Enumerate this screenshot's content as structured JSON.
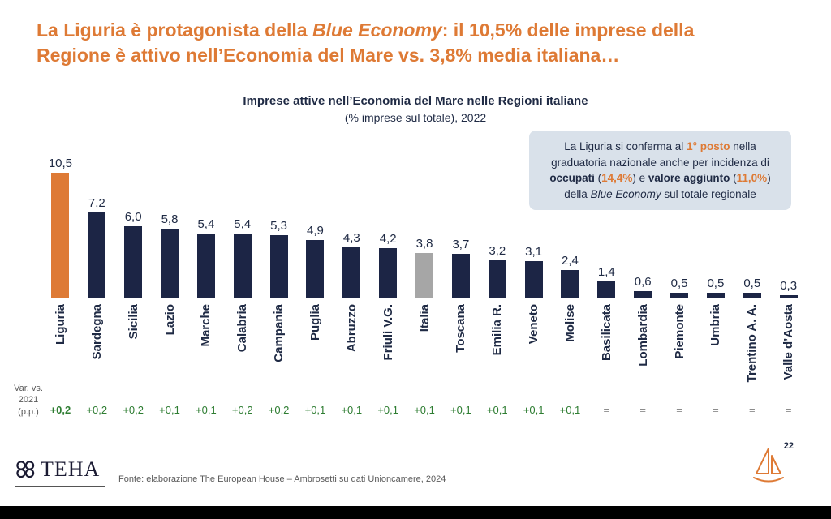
{
  "header": {
    "line1_pre": "La Liguria è protagonista della ",
    "line1_italic": "Blue Economy",
    "line1_post": ": il 10,5% delle imprese della",
    "line2": "Regione è attivo nell’Economia del Mare vs. 3,8% media italiana…"
  },
  "chart_data": {
    "type": "bar",
    "title": "Imprese attive nell’Economia del Mare nelle Regioni italiane",
    "subtitle": "(% imprese sul totale), 2022",
    "ylim": [
      0,
      10.5
    ],
    "grid": false,
    "legend": "none",
    "categories": [
      "Liguria",
      "Sardegna",
      "Sicilia",
      "Lazio",
      "Marche",
      "Calabria",
      "Campania",
      "Puglia",
      "Abruzzo",
      "Friuli V.G.",
      "Italia",
      "Toscana",
      "Emilia R.",
      "Veneto",
      "Molise",
      "Basilicata",
      "Lombardia",
      "Piemonte",
      "Umbria",
      "Trentino A. A.",
      "Valle d’Aosta"
    ],
    "values": [
      10.5,
      7.2,
      6.0,
      5.8,
      5.4,
      5.4,
      5.3,
      4.9,
      4.3,
      4.2,
      3.8,
      3.7,
      3.2,
      3.1,
      2.4,
      1.4,
      0.6,
      0.5,
      0.5,
      0.5,
      0.3
    ],
    "value_labels": [
      "10,5",
      "7,2",
      "6,0",
      "5,8",
      "5,4",
      "5,4",
      "5,3",
      "4,9",
      "4,3",
      "4,2",
      "3,8",
      "3,7",
      "3,2",
      "3,1",
      "2,4",
      "1,4",
      "0,6",
      "0,5",
      "0,5",
      "0,5",
      "0,3"
    ],
    "variations": [
      "+0,2",
      "+0,2",
      "+0,2",
      "+0,1",
      "+0,1",
      "+0,2",
      "+0,2",
      "+0,1",
      "+0,1",
      "+0,1",
      "+0,1",
      "+0,1",
      "+0,1",
      "+0,1",
      "+0,1",
      "=",
      "=",
      "=",
      "=",
      "=",
      "="
    ],
    "highlight_index": 0,
    "italia_index": 10,
    "bar_default_color": "#1C2545",
    "bar_highlight_color": "#DE7A35",
    "bar_italia_color": "#A6A6A6"
  },
  "callout": {
    "part1": "La Liguria si conferma al ",
    "hl1": "1° posto",
    "part2": " nella graduatoria nazionale anche per incidenza di ",
    "bold1": "occupati",
    "part3": " (",
    "hl2": "14,4%",
    "part4": ") e ",
    "bold2": "valore aggiunto",
    "part5": " (",
    "hl3": "11,0%",
    "part6": ") della ",
    "italic1": "Blue Economy",
    "part7": " sul totale regionale"
  },
  "var_axis": {
    "line1": "Var. vs.",
    "line2": "2021",
    "line3": "(p.p.)"
  },
  "footer": {
    "logo_text": "TEHA",
    "source": "Fonte: elaborazione The European House – Ambrosetti su dati Unioncamere, 2024",
    "page_number": "22"
  },
  "colors": {
    "accent_orange": "#DE7A35",
    "navy_text": "#1F2A44",
    "green_positive": "#2E7D32",
    "equal_gray": "#8C8C8C",
    "callout_bg": "#D9E1EA"
  }
}
